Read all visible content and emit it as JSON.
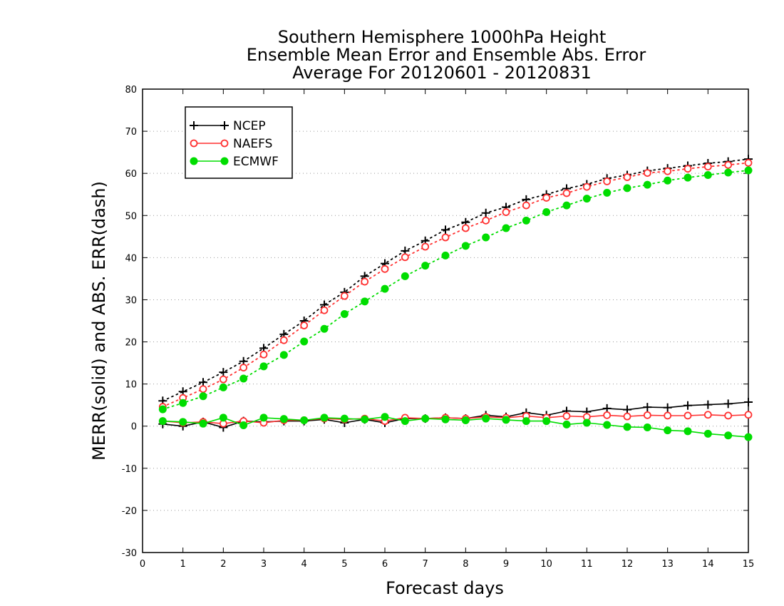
{
  "chart_data": {
    "type": "line",
    "title": [
      "Southern Hemisphere 1000hPa Height",
      "Ensemble Mean Error and Ensemble Abs. Error",
      "Average For 20120601 - 20120831"
    ],
    "xlabel": "Forecast days",
    "ylabel": "MERR(solid) and ABS. ERR(dash)",
    "xlim": [
      0,
      15
    ],
    "ylim": [
      -30,
      80
    ],
    "xticks": [
      0,
      1,
      2,
      3,
      4,
      5,
      6,
      7,
      8,
      9,
      10,
      11,
      12,
      13,
      14,
      15
    ],
    "yticks": [
      -30,
      -20,
      -10,
      0,
      10,
      20,
      30,
      40,
      50,
      60,
      70,
      80
    ],
    "grid": "horizontal dotted",
    "legend_position": "top-left",
    "x": [
      0.5,
      1,
      1.5,
      2,
      2.5,
      3,
      3.5,
      4,
      4.5,
      5,
      5.5,
      6,
      6.5,
      7,
      7.5,
      8,
      8.5,
      9,
      9.5,
      10,
      10.5,
      11,
      11.5,
      12,
      12.5,
      13,
      13.5,
      14,
      14.5,
      15
    ],
    "series": [
      {
        "name": "NCEP",
        "color": "#000000",
        "marker": "plus",
        "abs_error": [
          6.0,
          8.2,
          10.4,
          12.8,
          15.4,
          18.5,
          21.8,
          25.0,
          28.8,
          31.8,
          35.6,
          38.6,
          41.6,
          44.0,
          46.6,
          48.4,
          50.6,
          52.0,
          53.8,
          55.0,
          56.4,
          57.4,
          58.8,
          59.6,
          60.6,
          61.2,
          61.8,
          62.4,
          62.8,
          63.4
        ],
        "mean_error": [
          0.5,
          0.0,
          1.0,
          -0.3,
          1.2,
          1.0,
          1.2,
          1.2,
          1.6,
          0.8,
          1.6,
          0.8,
          1.8,
          1.8,
          2.0,
          1.8,
          2.6,
          2.2,
          3.2,
          2.6,
          3.6,
          3.4,
          4.2,
          3.9,
          4.5,
          4.4,
          4.9,
          5.1,
          5.3,
          5.7
        ]
      },
      {
        "name": "NAEFS",
        "color": "#ff3030",
        "marker": "open-circle",
        "abs_error": [
          4.6,
          6.7,
          8.8,
          11.1,
          13.9,
          17.0,
          20.4,
          23.9,
          27.5,
          30.9,
          34.3,
          37.3,
          40.1,
          42.6,
          44.8,
          47.0,
          48.8,
          50.8,
          52.4,
          54.2,
          55.3,
          56.8,
          58.1,
          59.1,
          60.1,
          60.5,
          61.1,
          61.6,
          62.0,
          62.5
        ],
        "mean_error": [
          1.2,
          0.8,
          1.0,
          0.6,
          1.2,
          0.8,
          1.4,
          1.4,
          1.8,
          1.6,
          1.8,
          1.2,
          2.0,
          1.8,
          2.0,
          1.8,
          2.2,
          2.0,
          2.4,
          2.0,
          2.4,
          2.2,
          2.6,
          2.3,
          2.6,
          2.5,
          2.5,
          2.7,
          2.5,
          2.7
        ]
      },
      {
        "name": "ECMWF",
        "color": "#00dd00",
        "marker": "filled-circle",
        "abs_error": [
          4.0,
          5.5,
          7.1,
          9.2,
          11.3,
          14.2,
          16.9,
          20.1,
          23.1,
          26.6,
          29.6,
          32.6,
          35.6,
          38.1,
          40.5,
          42.8,
          44.8,
          47.0,
          48.8,
          50.8,
          52.4,
          54.0,
          55.4,
          56.5,
          57.3,
          58.3,
          59.0,
          59.6,
          60.2,
          60.7
        ],
        "mean_error": [
          1.2,
          1.0,
          0.6,
          2.0,
          0.2,
          2.0,
          1.7,
          1.4,
          2.0,
          1.8,
          1.6,
          2.2,
          1.2,
          1.8,
          1.6,
          1.4,
          1.8,
          1.5,
          1.2,
          1.2,
          0.4,
          0.8,
          0.3,
          -0.2,
          -0.3,
          -1.0,
          -1.2,
          -1.8,
          -2.2,
          -2.6
        ]
      }
    ]
  }
}
